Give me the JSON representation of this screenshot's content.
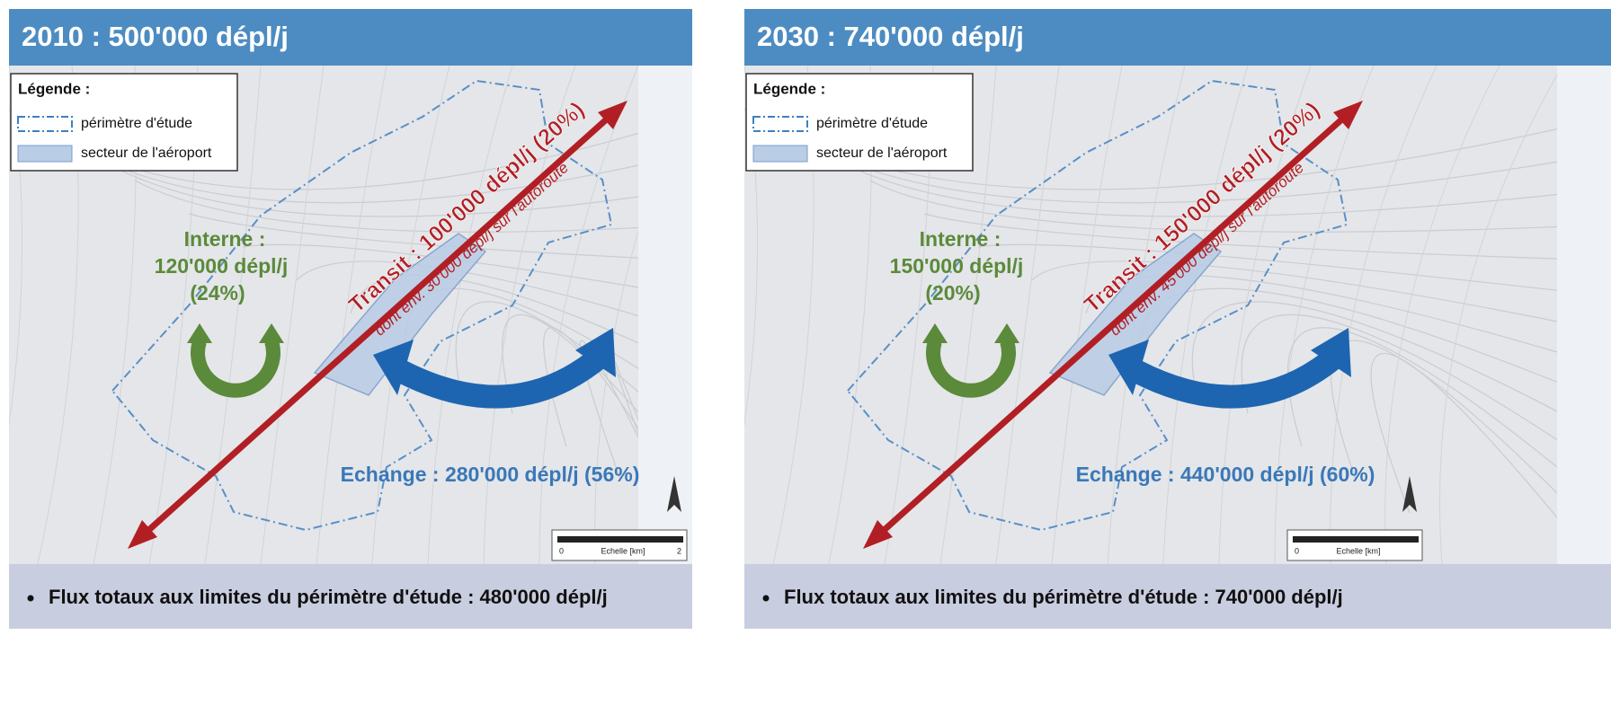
{
  "panels": [
    {
      "title": "2010 : 500'000 dépl/j",
      "legend": {
        "title": "Légende :",
        "items": [
          "périmètre d'étude",
          "secteur de l'aéroport"
        ]
      },
      "internal": [
        "Interne :",
        "120'000 dépl/j",
        "(24%)"
      ],
      "transit": "Transit : 100'000 dépl/j (20%)",
      "transit_note": "dont env. 30'000 dépl/j sur l'autoroute",
      "exchange": "Echange : 280'000 dépl/j (56%)",
      "scale": [
        "0",
        "Echelle [km]",
        "2"
      ],
      "bullet": "Flux totaux aux limites du périmètre d'étude : 480'000 dépl/j"
    },
    {
      "title": "2030 : 740'000 dépl/j",
      "legend": {
        "title": "Légende :",
        "items": [
          "périmètre d'étude",
          "secteur de l'aéroport"
        ]
      },
      "internal": [
        "Interne :",
        "150'000 dépl/j",
        "(20%)"
      ],
      "transit": "Transit : 150'000 dépl/j (20%)",
      "transit_note": "dont env. 45'000 dépl/j sur l'autoroute",
      "exchange": "Echange : 440'000 dépl/j (60%)",
      "scale": [
        "0",
        "Echelle [km]"
      ],
      "bullet": "Flux totaux aux limites du périmètre d'étude : 740'000 dépl/j"
    }
  ]
}
